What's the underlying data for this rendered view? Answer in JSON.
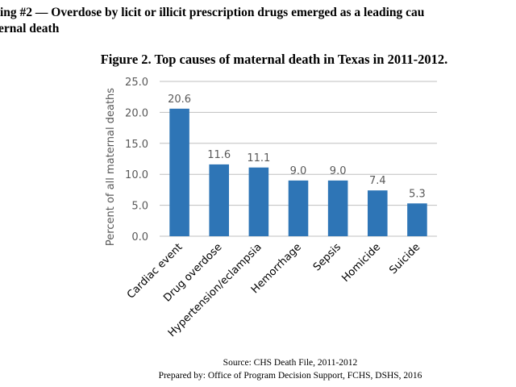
{
  "finding": {
    "line1": "ing #2 — Overdose by licit or illicit prescription drugs emerged as a leading cau",
    "line2": "ernal death"
  },
  "figure_title": "Figure 2. Top causes of maternal death in Texas in 2011-2012.",
  "footer": {
    "source": "Source: CHS Death File, 2011-2012",
    "prepared": "Prepared by: Office of Program Decision Support, FCHS, DSHS, 2016"
  },
  "chart_data": {
    "type": "bar",
    "categories": [
      "Cardiac event",
      "Drug overdose",
      "Hypertension/eclampsia",
      "Hemorrhage",
      "Sepsis",
      "Homicide",
      "Suicide"
    ],
    "values": [
      20.6,
      11.6,
      11.1,
      9.0,
      9.0,
      7.4,
      5.3
    ],
    "data_labels": [
      "20.6",
      "11.6",
      "11.1",
      "9.0",
      "9.0",
      "7.4",
      "5.3"
    ],
    "ylabel": "Percent of all maternal deaths",
    "ylim": [
      0,
      25
    ],
    "yticks": [
      "0.0",
      "5.0",
      "10.0",
      "15.0",
      "20.0",
      "25.0"
    ],
    "ytick_values": [
      0,
      5,
      10,
      15,
      20,
      25
    ],
    "grid": true,
    "bar_color": "#2E75B6",
    "grid_color": "#BFBFBF"
  }
}
